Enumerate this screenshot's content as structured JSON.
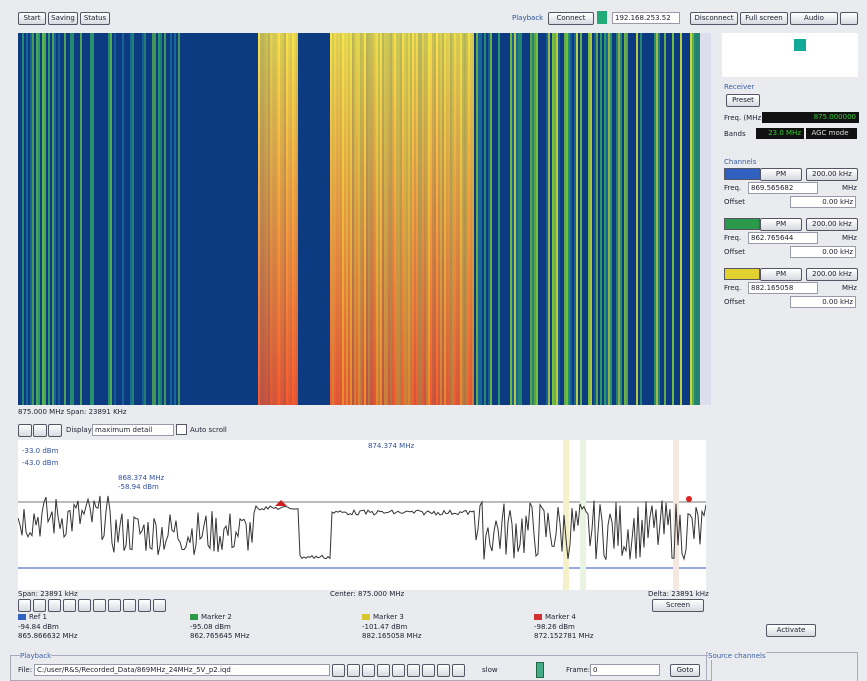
{
  "toolbar": {
    "left": [
      "Start",
      "Saving",
      "Status"
    ],
    "playback": "Playback",
    "connect": "Connect",
    "address": "192.168.253.52",
    "disconnect": "Disconnect",
    "fullscreen": "Full screen",
    "audio": "Audio"
  },
  "waterfall": {
    "caption": "875.000 MHz Span: 23891 KHz",
    "display": "Display",
    "detail": "maximum detail",
    "autoscroll": "Auto scroll"
  },
  "spectrum": {
    "ref_top": "-33.0 dBm",
    "ref_second": "-43.0 dBm",
    "top_marker": "874.374 MHz",
    "marker_freq": "868.374 MHz",
    "marker_level": "-58.94 dBm",
    "span": "Span: 23891 kHz",
    "center": "Center: 875.000 MHz",
    "delta": "Delta: 23891 kHz",
    "screen": "Screen"
  },
  "markers": [
    {
      "name": "Ref 1",
      "level": "-94.84 dBm",
      "freq": "865.866632 MHz"
    },
    {
      "name": "Marker 2",
      "level": "-95.08 dBm",
      "freq": "862.765645 MHz"
    },
    {
      "name": "Marker 3",
      "level": "-101.47 dBm",
      "freq": "882.165058 MHz"
    },
    {
      "name": "Marker 4",
      "level": "-98.26 dBm",
      "freq": "872.152781 MHz"
    }
  ],
  "panel": {
    "receiver": "Receiver",
    "preset": "Preset",
    "freq_label": "Freq. (MHz)",
    "freq_value": "875.000000",
    "bands_label": "Bands",
    "bands_value": "23.0 MHz",
    "agc": "AGC mode",
    "channels_title": "Channels",
    "channels": [
      {
        "mode": "PM",
        "bw": "200.00 kHz",
        "freq_label": "Freq.",
        "freq": "869.565682",
        "unit": "MHz",
        "offset_label": "Offset",
        "offset": "0.00 kHz"
      },
      {
        "mode": "PM",
        "bw": "200.00 kHz",
        "freq_label": "Freq.",
        "freq": "862.765644",
        "unit": "MHz",
        "offset_label": "Offset",
        "offset": "0.00 kHz"
      },
      {
        "mode": "PM",
        "bw": "200.00 kHz",
        "freq_label": "Freq.",
        "freq": "882.165058",
        "unit": "MHz",
        "offset_label": "Offset",
        "offset": "0.00 kHz"
      }
    ],
    "activate": "Activate",
    "source_channels": "Source channels"
  },
  "playback": {
    "title": "Playback",
    "file_label": "File:",
    "file": "C:/user/R&S/Recorded_Data/869MHz_24MHz_5V_p2.iqd",
    "speed": "slow",
    "frame_label": "Frame:",
    "frame": "0",
    "goto": "Goto"
  }
}
